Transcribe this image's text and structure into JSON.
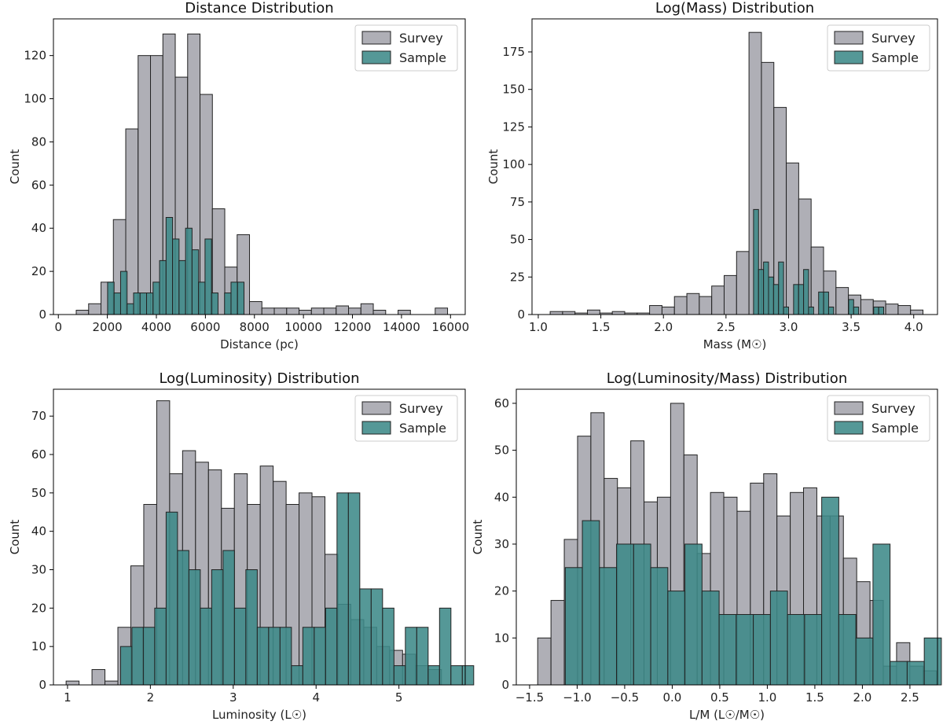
{
  "legend": {
    "survey": "Survey",
    "sample": "Sample"
  },
  "colors": {
    "survey": "#a6a6ae",
    "sample": "#3e8a89",
    "edge": "#222222"
  },
  "chart_data": [
    {
      "type": "bar",
      "title": "Distance Distribution",
      "xlabel": "Distance (pc)",
      "ylabel": "Count",
      "xlim": [
        -200,
        16600
      ],
      "ylim": [
        0,
        137
      ],
      "xticks": [
        0,
        2000,
        4000,
        6000,
        8000,
        10000,
        12000,
        14000,
        16000
      ],
      "xtick_labels": [
        "0",
        "2000",
        "4000",
        "6000",
        "8000",
        "10000",
        "12000",
        "14000",
        "16000"
      ],
      "yticks": [
        0,
        20,
        40,
        60,
        80,
        100,
        120
      ],
      "ytick_labels": [
        "0",
        "20",
        "40",
        "60",
        "80",
        "100",
        "120"
      ],
      "legend_position": "top-right",
      "series": [
        {
          "name": "Survey",
          "bin_start": 730,
          "bin_width": 505,
          "values": [
            2,
            5,
            15,
            44,
            86,
            120,
            120,
            130,
            110,
            130,
            102,
            49,
            22,
            37,
            6,
            3,
            3,
            3,
            2,
            3,
            3,
            4,
            3,
            5,
            2,
            0,
            2,
            0,
            0,
            3
          ]
        },
        {
          "name": "Sample",
          "bin_start": 2010,
          "bin_width": 265,
          "values": [
            15,
            10,
            20,
            5,
            10,
            10,
            10,
            15,
            25,
            45,
            35,
            25,
            40,
            30,
            15,
            35,
            10,
            0,
            10,
            15,
            15
          ]
        }
      ]
    },
    {
      "type": "bar",
      "title": "Log(Mass) Distribution",
      "xlabel": "Mass (M☉)",
      "ylabel": "Count",
      "xlim": [
        0.95,
        4.19
      ],
      "ylim": [
        0,
        197
      ],
      "xticks": [
        1.0,
        1.5,
        2.0,
        2.5,
        3.0,
        3.5,
        4.0
      ],
      "xtick_labels": [
        "1.0",
        "1.5",
        "2.0",
        "2.5",
        "3.0",
        "3.5",
        "4.0"
      ],
      "yticks": [
        0,
        25,
        50,
        75,
        100,
        125,
        150,
        175
      ],
      "ytick_labels": [
        "0",
        "25",
        "50",
        "75",
        "100",
        "125",
        "150",
        "175"
      ],
      "legend_position": "top-right",
      "series": [
        {
          "name": "Survey",
          "bin_start": 1.095,
          "bin_width": 0.0993,
          "values": [
            2,
            2,
            1,
            3,
            1,
            2,
            1,
            1,
            6,
            5,
            12,
            14,
            12,
            19,
            26,
            42,
            188,
            168,
            138,
            101,
            77,
            45,
            29,
            18,
            13,
            10,
            9,
            7,
            6,
            3
          ]
        },
        {
          "name": "Sample",
          "bin_start": 2.72,
          "bin_width": 0.04,
          "values": [
            70,
            30,
            35,
            25,
            20,
            35,
            5,
            0,
            20,
            20,
            30,
            5,
            0,
            15,
            15,
            5,
            0,
            0,
            0,
            10,
            5,
            0,
            0,
            0,
            5,
            5
          ]
        }
      ]
    },
    {
      "type": "bar",
      "title": "Log(Luminosity) Distribution",
      "xlabel": "Luminosity (L☉)",
      "ylabel": "Count",
      "xlim": [
        0.83,
        5.8
      ],
      "ylim": [
        0,
        77
      ],
      "xticks": [
        1,
        2,
        3,
        4,
        5
      ],
      "xtick_labels": [
        "1",
        "2",
        "3",
        "4",
        "5"
      ],
      "yticks": [
        0,
        10,
        20,
        30,
        40,
        50,
        60,
        70
      ],
      "ytick_labels": [
        "0",
        "10",
        "20",
        "30",
        "40",
        "50",
        "60",
        "70"
      ],
      "legend_position": "top-right",
      "series": [
        {
          "name": "Survey",
          "bin_start": 0.983,
          "bin_width": 0.1562,
          "values": [
            1,
            0,
            4,
            1,
            15,
            31,
            47,
            74,
            55,
            61,
            58,
            56,
            46,
            55,
            47,
            57,
            53,
            47,
            50,
            49,
            34,
            21,
            17,
            15,
            10,
            9,
            8,
            5,
            4
          ]
        },
        {
          "name": "Sample",
          "bin_start": 1.64,
          "bin_width": 0.1375,
          "values": [
            10,
            15,
            15,
            20,
            45,
            35,
            30,
            20,
            30,
            35,
            20,
            30,
            15,
            15,
            15,
            5,
            15,
            15,
            20,
            50,
            50,
            25,
            25,
            20,
            5,
            15,
            15,
            5,
            20,
            5,
            5
          ]
        }
      ]
    },
    {
      "type": "bar",
      "title": "Log(Luminosity/Mass) Distribution",
      "xlabel": "L/M (L☉/M☉)",
      "ylabel": "Count",
      "xlim": [
        -1.64,
        2.79
      ],
      "ylim": [
        0,
        63
      ],
      "xticks": [
        -1.5,
        -1.0,
        -0.5,
        0.0,
        0.5,
        1.0,
        1.5,
        2.0,
        2.5
      ],
      "xtick_labels": [
        "−1.5",
        "−1.0",
        "−0.5",
        "0.0",
        "0.5",
        "1.0",
        "1.5",
        "2.0",
        "2.5"
      ],
      "yticks": [
        0,
        10,
        20,
        30,
        40,
        50,
        60
      ],
      "ytick_labels": [
        "0",
        "10",
        "20",
        "30",
        "40",
        "50",
        "60"
      ],
      "legend_position": "top-right",
      "series": [
        {
          "name": "Survey",
          "bin_start": -1.415,
          "bin_width": 0.1398,
          "values": [
            10,
            18,
            31,
            53,
            58,
            44,
            42,
            52,
            39,
            40,
            60,
            49,
            28,
            41,
            40,
            37,
            43,
            45,
            36,
            41,
            42,
            36,
            36,
            27,
            22,
            18,
            4,
            9,
            4,
            3
          ]
        },
        {
          "name": "Sample",
          "bin_start": -1.125,
          "bin_width": 0.1798,
          "values": [
            25,
            35,
            25,
            30,
            30,
            25,
            20,
            30,
            20,
            15,
            15,
            15,
            20,
            15,
            15,
            40,
            15,
            10,
            30,
            5,
            5,
            10
          ]
        }
      ]
    }
  ]
}
